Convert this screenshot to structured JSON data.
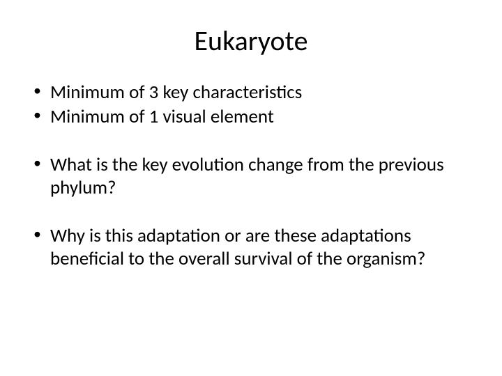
{
  "slide": {
    "title": "Eukaryote",
    "title_fontsize": 40,
    "body_fontsize": 27,
    "text_color": "#000000",
    "background_color": "#ffffff",
    "bullets": [
      "Minimum of 3 key characteristics",
      "Minimum of 1 visual element",
      "What is the key evolution change from the previous phylum?",
      "Why is this adaptation or are these adaptations beneficial to the overall survival of the organism?"
    ],
    "groups": [
      [
        0,
        1
      ],
      [
        2
      ],
      [
        3
      ]
    ]
  }
}
